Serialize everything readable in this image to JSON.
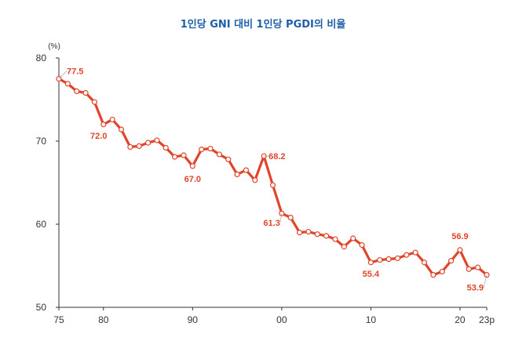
{
  "title": "1인당 GNI 대비 1인당 PGDI의 비율",
  "colors": {
    "title": "#1f5fa8",
    "line": "#e0452c",
    "point_fill": "#ffffff",
    "label": "#e0452c",
    "axis": "#333333",
    "leader": "#999999"
  },
  "chart_data": {
    "type": "line",
    "title": "1인당 GNI 대비 1인당 PGDI의 비율",
    "unit_label": "(%)",
    "xlabel": "",
    "ylabel": "",
    "ylim": [
      50,
      80
    ],
    "xlim": [
      1975,
      2023
    ],
    "grid": false,
    "y_ticks": [
      50,
      60,
      70,
      80
    ],
    "x_ticks": [
      {
        "value": 1975,
        "label": "75"
      },
      {
        "value": 1980,
        "label": "80"
      },
      {
        "value": 1990,
        "label": "90"
      },
      {
        "value": 2000,
        "label": "00"
      },
      {
        "value": 2010,
        "label": "10"
      },
      {
        "value": 2020,
        "label": "20"
      },
      {
        "value": 2023,
        "label": "23p"
      }
    ],
    "x": [
      1975,
      1976,
      1977,
      1978,
      1979,
      1980,
      1981,
      1982,
      1983,
      1984,
      1985,
      1986,
      1987,
      1988,
      1989,
      1990,
      1991,
      1992,
      1993,
      1994,
      1995,
      1996,
      1997,
      1998,
      1999,
      2000,
      2001,
      2002,
      2003,
      2004,
      2005,
      2006,
      2007,
      2008,
      2009,
      2010,
      2011,
      2012,
      2013,
      2014,
      2015,
      2016,
      2017,
      2018,
      2019,
      2020,
      2021,
      2022,
      2023
    ],
    "values": [
      77.5,
      76.9,
      76.0,
      75.8,
      74.7,
      72.0,
      72.6,
      71.4,
      69.3,
      69.4,
      69.8,
      70.1,
      69.2,
      68.1,
      68.3,
      67.0,
      69.0,
      69.1,
      68.4,
      67.8,
      66.0,
      66.5,
      65.3,
      68.2,
      64.7,
      61.3,
      60.8,
      59.0,
      59.1,
      58.8,
      58.6,
      58.2,
      57.3,
      58.3,
      57.5,
      55.4,
      55.7,
      55.8,
      55.9,
      56.3,
      56.6,
      55.4,
      53.9,
      54.3,
      55.6,
      56.9,
      54.6,
      54.8,
      53.9
    ],
    "data_labels": [
      {
        "x": 1975,
        "text": "77.5"
      },
      {
        "x": 1980,
        "text": "72.0"
      },
      {
        "x": 1990,
        "text": "67.0"
      },
      {
        "x": 1998,
        "text": "68.2"
      },
      {
        "x": 2000,
        "text": "61.3"
      },
      {
        "x": 2010,
        "text": "55.4"
      },
      {
        "x": 2020,
        "text": "56.9"
      },
      {
        "x": 2023,
        "text": "53.9"
      }
    ]
  }
}
